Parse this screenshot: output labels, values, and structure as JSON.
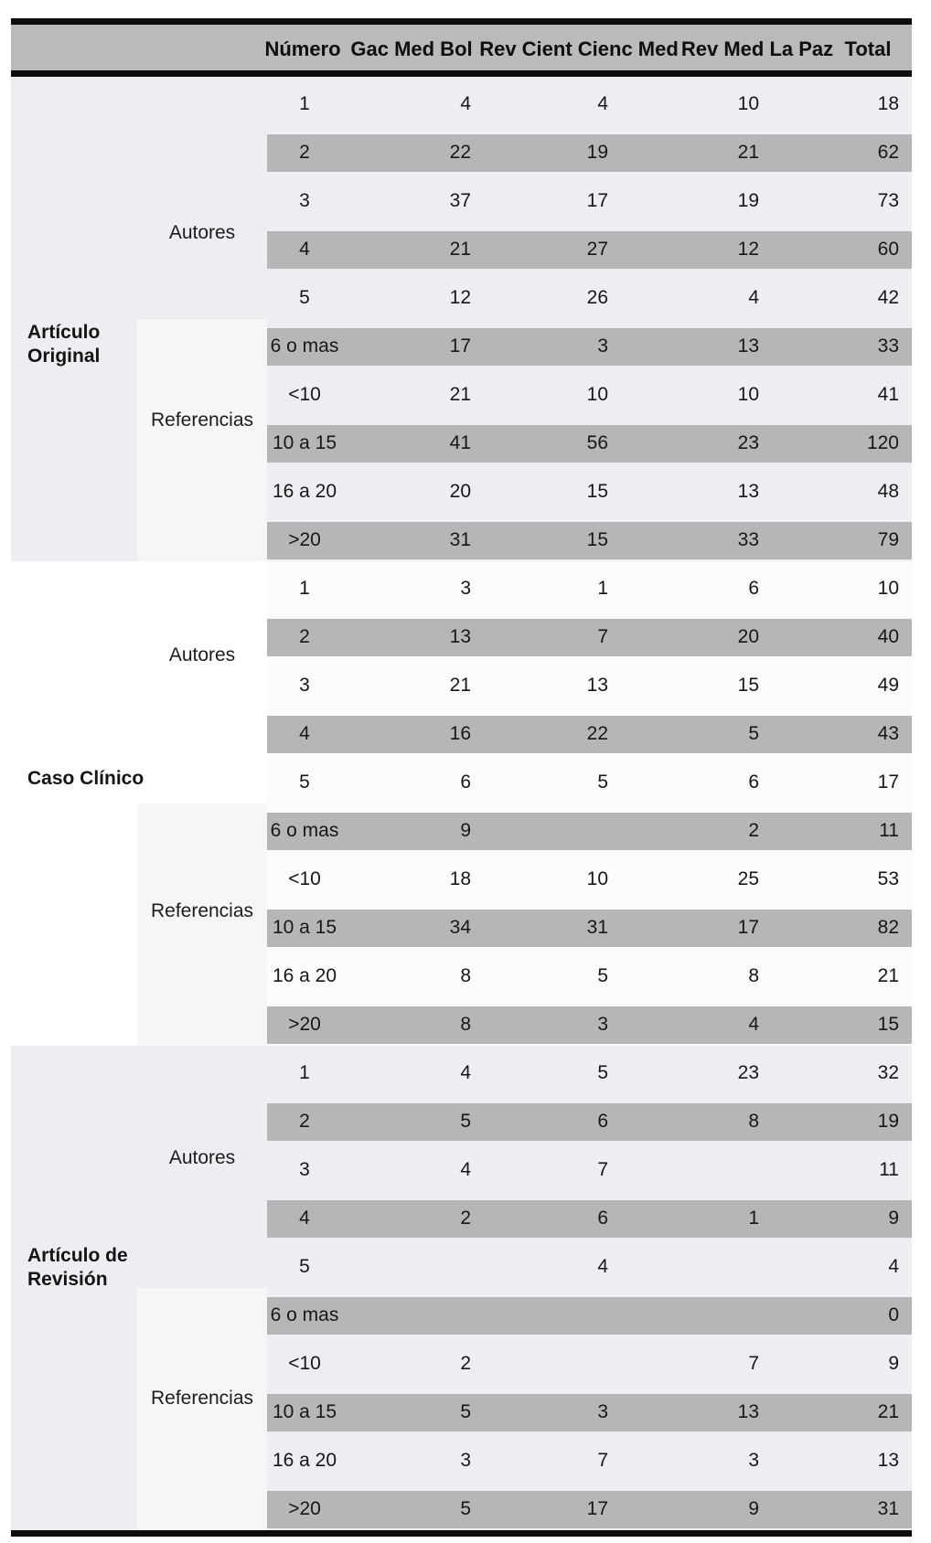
{
  "table": {
    "columns": [
      "Número",
      "Gac Med Bol",
      "Rev Cient Cienc Med",
      "Rev Med La Paz",
      "Total"
    ],
    "sections": [
      {
        "name": "Artículo\nOriginal",
        "groups": [
          {
            "name": "Autores",
            "rows": [
              [
                "1",
                "4",
                "4",
                "10",
                "18"
              ],
              [
                "2",
                "22",
                "19",
                "21",
                "62"
              ],
              [
                "3",
                "37",
                "17",
                "19",
                "73"
              ],
              [
                "4",
                "21",
                "27",
                "12",
                "60"
              ],
              [
                "5",
                "12",
                "26",
                "4",
                "42"
              ]
            ]
          },
          {
            "name": "Referencias",
            "rows": [
              [
                "6 o mas",
                "17",
                "3",
                "13",
                "33"
              ],
              [
                "<10",
                "21",
                "10",
                "10",
                "41"
              ],
              [
                "10 a 15",
                "41",
                "56",
                "23",
                "120"
              ],
              [
                "16 a 20",
                "20",
                "15",
                "13",
                "48"
              ],
              [
                ">20",
                "31",
                "15",
                "33",
                "79"
              ]
            ]
          }
        ]
      },
      {
        "name": "Caso Clínico",
        "groups": [
          {
            "name": "Autores",
            "rows": [
              [
                "1",
                "3",
                "1",
                "6",
                "10"
              ],
              [
                "2",
                "13",
                "7",
                "20",
                "40"
              ],
              [
                "3",
                "21",
                "13",
                "15",
                "49"
              ],
              [
                "4",
                "16",
                "22",
                "5",
                "43"
              ],
              [
                "5",
                "6",
                "5",
                "6",
                "17"
              ]
            ]
          },
          {
            "name": "Referencias",
            "rows": [
              [
                "6 o mas",
                "9",
                "",
                "2",
                "11"
              ],
              [
                "<10",
                "18",
                "10",
                "25",
                "53"
              ],
              [
                "10 a 15",
                "34",
                "31",
                "17",
                "82"
              ],
              [
                "16 a 20",
                "8",
                "5",
                "8",
                "21"
              ],
              [
                ">20",
                "8",
                "3",
                "4",
                "15"
              ]
            ]
          }
        ]
      },
      {
        "name": "Artículo de\nRevisión",
        "groups": [
          {
            "name": "Autores",
            "rows": [
              [
                "1",
                "4",
                "5",
                "23",
                "32"
              ],
              [
                "2",
                "5",
                "6",
                "8",
                "19"
              ],
              [
                "3",
                "4",
                "7",
                "",
                "11"
              ],
              [
                "4",
                "2",
                "6",
                "1",
                "9"
              ],
              [
                "5",
                "",
                "4",
                "",
                "4"
              ]
            ]
          },
          {
            "name": "Referencias",
            "rows": [
              [
                "6 o mas",
                "",
                "",
                "",
                "0"
              ],
              [
                "<10",
                "2",
                "",
                "7",
                "9"
              ],
              [
                "10 a 15",
                "5",
                "3",
                "13",
                "21"
              ],
              [
                "16 a 20",
                "3",
                "7",
                "3",
                "13"
              ],
              [
                ">20",
                "5",
                "17",
                "9",
                "31"
              ]
            ]
          }
        ]
      }
    ]
  },
  "colors": {
    "border": "#0d0d0d",
    "header_bg": "#b9babc",
    "stripe": "#b5b6b8",
    "section_tint": "#eceef2",
    "section_white_row": "#fafbfc",
    "referencias_block": "#f6f6f7",
    "text": "#171717"
  }
}
